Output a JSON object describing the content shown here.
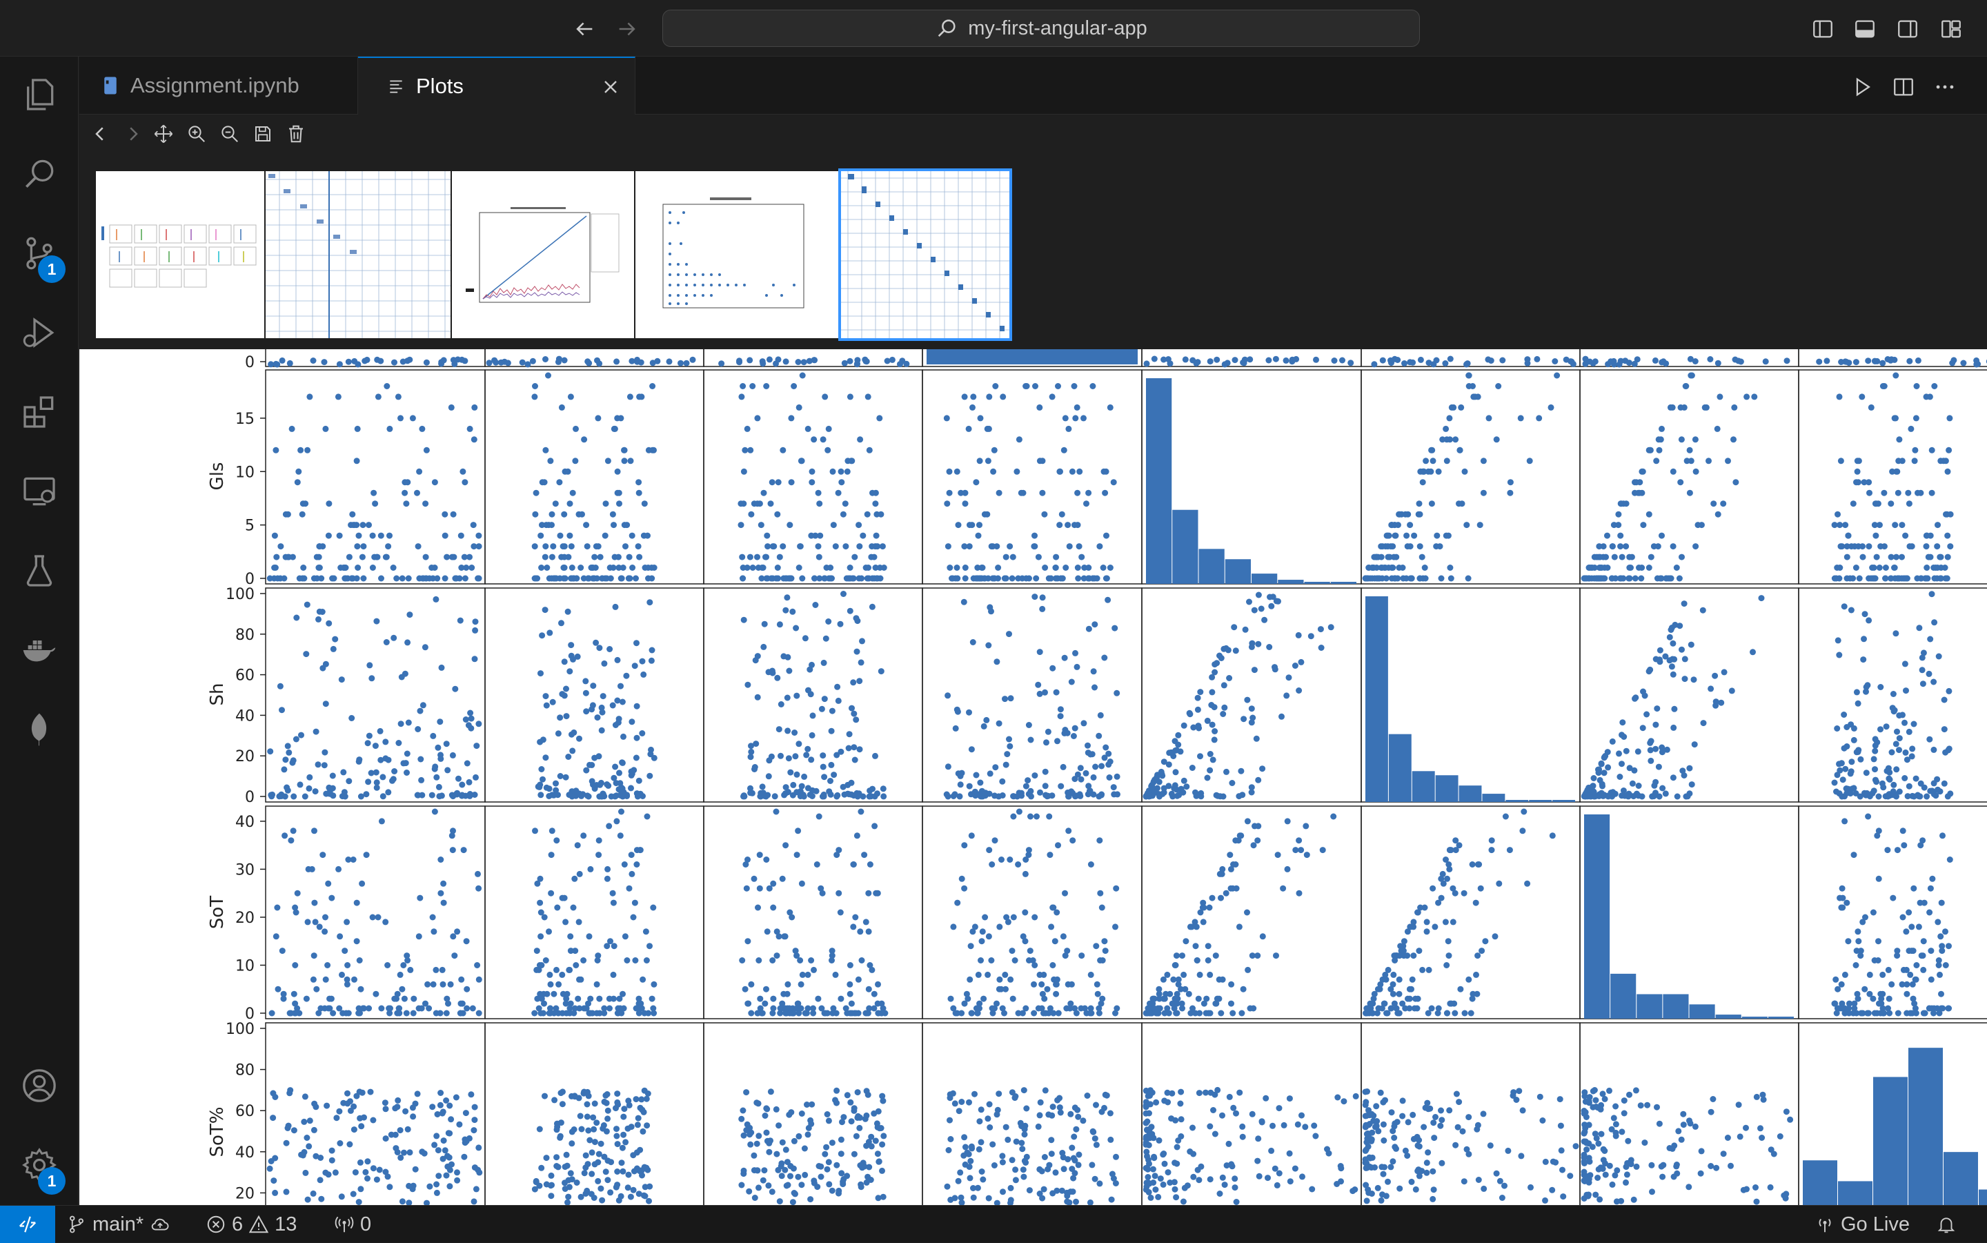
{
  "titlebar": {
    "search_text": "my-first-angular-app"
  },
  "activity_bar": {
    "scm_badge": "1",
    "settings_badge": "1"
  },
  "tabs": [
    {
      "label": "Assignment.ipynb",
      "active": false
    },
    {
      "label": "Plots",
      "active": true
    }
  ],
  "scatter_matrix": {
    "y_labels": [
      "Gls",
      "Sh",
      "SoT",
      "SoT%"
    ],
    "gls_ticks": [
      "0",
      "5",
      "10",
      "15"
    ],
    "sh_ticks": [
      "0",
      "20",
      "40",
      "60",
      "80",
      "100"
    ],
    "sot_ticks": [
      "0",
      "10",
      "20",
      "30",
      "40"
    ],
    "sotp_ticks": [
      "20",
      "40",
      "60",
      "80",
      "100"
    ],
    "top_row_tick": "0"
  },
  "chart_data": {
    "type": "scatter",
    "variables": [
      "Gls",
      "Sh",
      "SoT",
      "SoT%"
    ],
    "ranges": {
      "Gls": [
        0,
        19
      ],
      "Sh": [
        0,
        100
      ],
      "SoT": [
        0,
        42
      ],
      "SoT%": [
        0,
        100
      ]
    },
    "histograms": {
      "Gls": [
        100,
        36,
        17,
        12,
        5,
        2,
        1,
        1
      ],
      "Sh": [
        100,
        33,
        15,
        13,
        8,
        4,
        1,
        1,
        1
      ],
      "SoT": [
        100,
        22,
        12,
        12,
        7,
        2,
        1,
        1
      ],
      "SoT%": [
        38,
        28,
        78,
        92,
        42,
        24
      ]
    },
    "grid": false,
    "legend": "none"
  },
  "status_bar": {
    "branch": "main*",
    "errors": "6",
    "warnings": "13",
    "ports": "0",
    "go_live": "Go Live"
  },
  "colors": {
    "accent": "#0078d4",
    "marker": "#3a72b5",
    "background": "#1e1e1e"
  }
}
